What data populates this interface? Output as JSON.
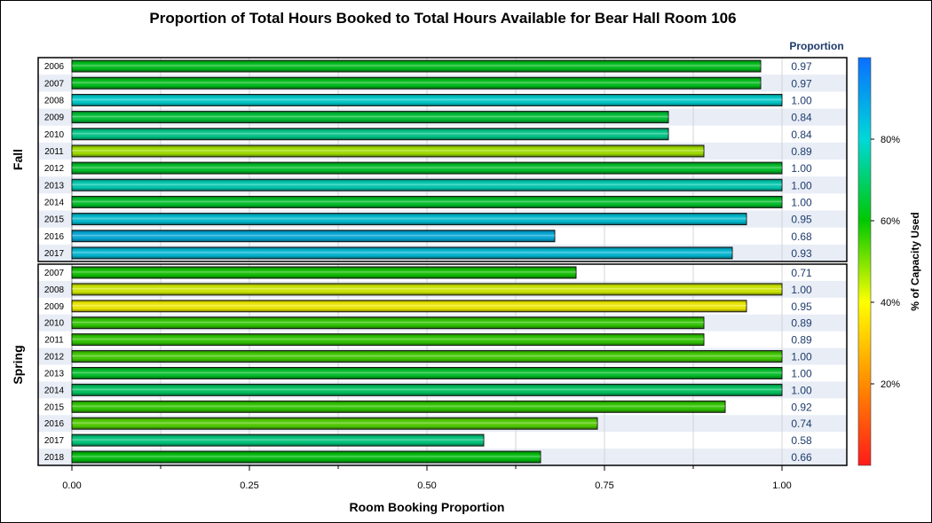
{
  "chart_data": {
    "type": "bar",
    "orientation": "horizontal",
    "title": "Proportion of Total Hours Booked to Total Hours Available for Bear Hall Room 106",
    "xlabel": "Room Booking Proportion",
    "value_column_header": "Proportion",
    "xlim": [
      0,
      1
    ],
    "x_ticks": [
      "0.00",
      "0.25",
      "0.50",
      "0.75",
      "1.00"
    ],
    "grid": true,
    "legend": {
      "title": "% of Capacity Used",
      "placement": "right",
      "ticks": [
        "20%",
        "40%",
        "60%",
        "80%"
      ],
      "range": [
        0,
        100
      ],
      "colors": [
        "#ff1a1a",
        "#ff8c00",
        "#ffff00",
        "#00c800",
        "#00d8d8",
        "#0a6fff"
      ]
    },
    "panels": [
      {
        "label": "Fall",
        "categories": [
          "2006",
          "2007",
          "2008",
          "2009",
          "2010",
          "2011",
          "2012",
          "2013",
          "2014",
          "2015",
          "2016",
          "2017"
        ],
        "values": [
          0.97,
          0.97,
          1.0,
          0.84,
          0.84,
          0.89,
          1.0,
          1.0,
          1.0,
          0.95,
          0.68,
          0.93
        ],
        "value_labels": [
          "0.97",
          "0.97",
          "1.00",
          "0.84",
          "0.84",
          "0.89",
          "1.00",
          "1.00",
          "1.00",
          "0.95",
          "0.68",
          "0.93"
        ],
        "capacity_pct": [
          67,
          67,
          80,
          69,
          75,
          55,
          68,
          78,
          68,
          83,
          87,
          84
        ]
      },
      {
        "label": "Spring",
        "categories": [
          "2007",
          "2008",
          "2009",
          "2010",
          "2011",
          "2012",
          "2013",
          "2014",
          "2015",
          "2016",
          "2017",
          "2018"
        ],
        "values": [
          0.71,
          1.0,
          0.95,
          0.89,
          0.89,
          1.0,
          1.0,
          1.0,
          0.92,
          0.74,
          0.58,
          0.66
        ],
        "value_labels": [
          "0.71",
          "1.00",
          "0.95",
          "0.89",
          "0.89",
          "1.00",
          "1.00",
          "1.00",
          "0.92",
          "0.74",
          "0.58",
          "0.66"
        ],
        "capacity_pct": [
          64,
          52,
          49,
          62,
          62,
          61,
          68,
          72,
          62,
          60,
          74,
          66
        ]
      }
    ]
  }
}
